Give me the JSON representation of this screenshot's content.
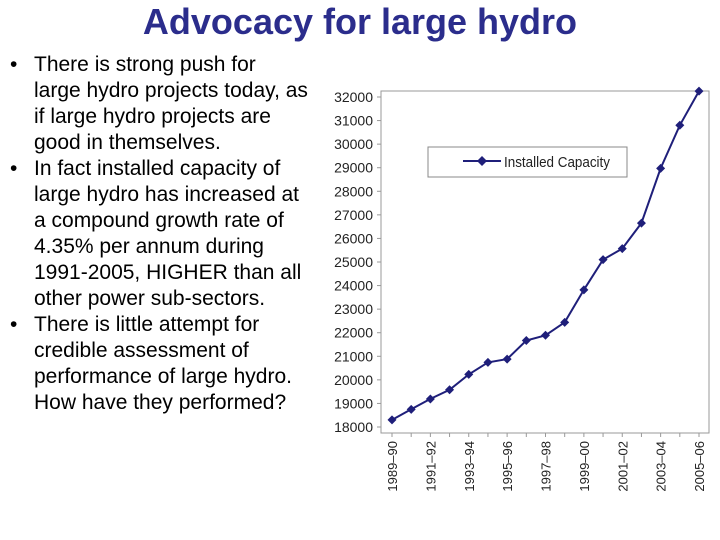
{
  "slide": {
    "title": "Advocacy for large hydro",
    "bullets": [
      "There is strong push for large hydro projects today, as if large hydro projects are good in themselves.",
      "In fact installed capacity of large hydro has increased at a compound growth rate of 4.35% per annum during 1991-2005, HIGHER than all other power sub-sectors.",
      "There is little attempt for credible assessment of performance of large hydro. How have they performed?"
    ],
    "bullet_symbol": "•"
  },
  "colors": {
    "title": "#2b2d8c",
    "series": "#1f1f7a",
    "frame": "#999999"
  },
  "chart_data": {
    "type": "line",
    "title": "",
    "xlabel": "",
    "ylabel": "",
    "ylim": [
      18000,
      32000
    ],
    "yticks": [
      18000,
      19000,
      20000,
      21000,
      22000,
      23000,
      24000,
      25000,
      26000,
      27000,
      28000,
      29000,
      30000,
      31000,
      32000
    ],
    "categories": [
      "1989-90",
      "1990-91",
      "1991-92",
      "1992-93",
      "1993-94",
      "1994-95",
      "1995-96",
      "1996-97",
      "1997-98",
      "1998-99",
      "1999-00",
      "2000-01",
      "2001-02",
      "2002-03",
      "2003-04",
      "2004-05",
      "2005-06"
    ],
    "x_tick_labels": [
      "1989–90",
      "",
      "1991–92",
      "",
      "1993–94",
      "",
      "1995–96",
      "",
      "1997–98",
      "",
      "1999–00",
      "",
      "2001–02",
      "",
      "2003–04",
      "",
      "2005–06"
    ],
    "series": [
      {
        "name": "Installed Capacity",
        "values": [
          18300,
          18750,
          19190,
          19580,
          20230,
          20740,
          20880,
          21670,
          21890,
          22440,
          23820,
          25100,
          25570,
          26650,
          28970,
          30800,
          32250
        ]
      }
    ],
    "legend": {
      "position": "top-right",
      "entries": [
        "Installed Capacity"
      ]
    },
    "grid": false
  }
}
